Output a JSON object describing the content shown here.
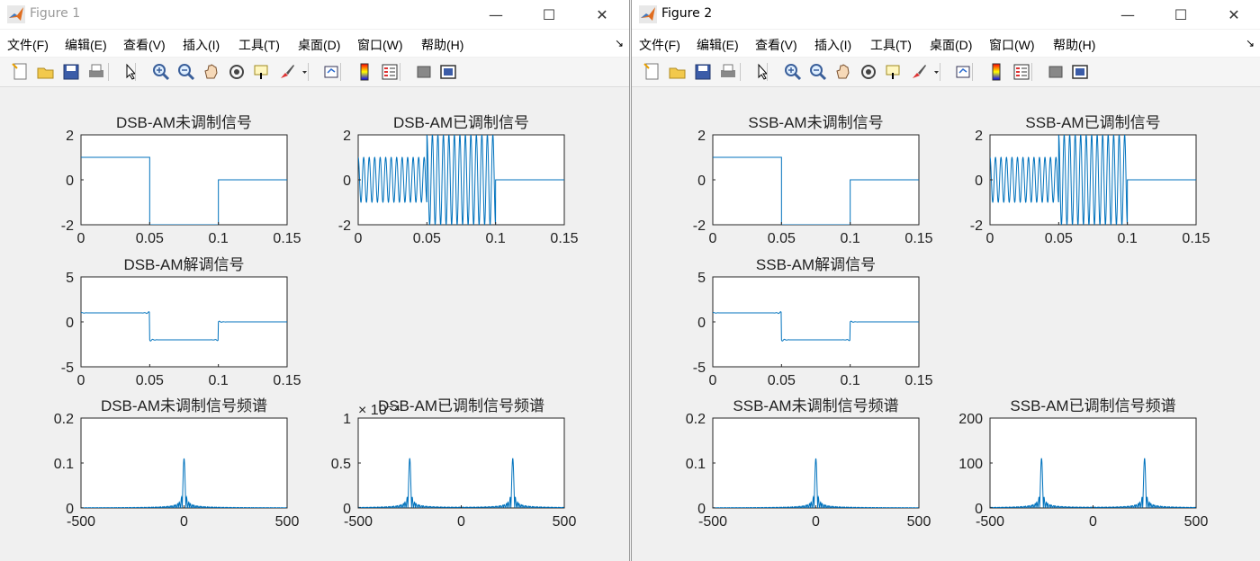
{
  "colors": {
    "line": "#0072bd",
    "axes_bg": "#ffffff",
    "figure_bg": "#f0f0f0"
  },
  "menu": [
    "文件(F)",
    "编辑(E)",
    "查看(V)",
    "插入(I)",
    "工具(T)",
    "桌面(D)",
    "窗口(W)",
    "帮助(H)"
  ],
  "window_controls": {
    "minimize": "—",
    "maximize": "☐",
    "close": "✕"
  },
  "toolbar_icons": [
    "new-figure-icon",
    "open-file-icon",
    "save-icon",
    "print-icon",
    "edit-plot-icon",
    "zoom-in-icon",
    "zoom-out-icon",
    "pan-icon",
    "rotate-3d-icon",
    "data-cursor-icon",
    "brush-icon",
    "brush-dropdown-icon",
    "link-plot-icon",
    "colorbar-icon",
    "legend-icon",
    "hide-plot-tools-icon",
    "show-plot-tools-icon"
  ],
  "figures": [
    {
      "title": "Figure 1",
      "chart_data": [
        {
          "type": "line",
          "title": "DSB-AM未调制信号",
          "xlim": [
            0,
            0.15
          ],
          "ylim": [
            -2,
            2
          ],
          "xticks": [
            "0",
            "0.05",
            "0.1",
            "0.15"
          ],
          "yticks": [
            "2",
            "0",
            "-2"
          ],
          "signal": "message",
          "x": [
            0,
            0.05,
            0.05,
            0.1,
            0.1,
            0.15
          ],
          "y": [
            1,
            1,
            -2,
            -2,
            0,
            0
          ]
        },
        {
          "type": "line",
          "title": "DSB-AM已调制信号",
          "xlim": [
            0,
            0.15
          ],
          "ylim": [
            -2,
            2
          ],
          "xticks": [
            "0",
            "0.05",
            "0.1",
            "0.15"
          ],
          "yticks": [
            "2",
            "0",
            "-2"
          ],
          "signal": "modulated",
          "carrier_hz": 250,
          "envelope": {
            "x": [
              0,
              0.05,
              0.1,
              0.15
            ],
            "y": [
              1,
              -2,
              0,
              0
            ]
          }
        },
        {
          "type": "line",
          "title": "DSB-AM解调信号",
          "xlim": [
            0,
            0.15
          ],
          "ylim": [
            -5,
            5
          ],
          "xticks": [
            "0",
            "0.05",
            "0.1",
            "0.15"
          ],
          "yticks": [
            "5",
            "0",
            "-5"
          ],
          "signal": "demodulated",
          "x": [
            0,
            0.05,
            0.05,
            0.1,
            0.1,
            0.15
          ],
          "y": [
            1,
            1,
            -2,
            -2,
            0,
            0
          ]
        },
        {
          "type": "line",
          "title": "DSB-AM未调制信号频谱",
          "xlim": [
            -500,
            500
          ],
          "ylim": [
            0,
            0.2
          ],
          "xticks": [
            "-500",
            "0",
            "500"
          ],
          "yticks": [
            "0.2",
            "0.1",
            "0"
          ],
          "signal": "spectrum",
          "peaks": [
            {
              "f": 0,
              "amp": 0.11
            }
          ]
        },
        {
          "type": "line",
          "title": "DSB-AM已调制信号频谱",
          "xlim": [
            -500,
            500
          ],
          "ylim": [
            0,
            1
          ],
          "xticks": [
            "-500",
            "0",
            "500"
          ],
          "yticks": [
            "1",
            "0.5",
            "0"
          ],
          "exponent_label": "× 10⁻⁴",
          "signal": "spectrum",
          "peaks": [
            {
              "f": -250,
              "amp": 0.55
            },
            {
              "f": 250,
              "amp": 0.55
            }
          ]
        }
      ]
    },
    {
      "title": "Figure 2",
      "chart_data": [
        {
          "type": "line",
          "title": "SSB-AM未调制信号",
          "xlim": [
            0,
            0.15
          ],
          "ylim": [
            -2,
            2
          ],
          "xticks": [
            "0",
            "0.05",
            "0.1",
            "0.15"
          ],
          "yticks": [
            "2",
            "0",
            "-2"
          ],
          "signal": "message",
          "x": [
            0,
            0.05,
            0.05,
            0.1,
            0.1,
            0.15
          ],
          "y": [
            1,
            1,
            -2,
            -2,
            0,
            0
          ]
        },
        {
          "type": "line",
          "title": "SSB-AM已调制信号",
          "xlim": [
            0,
            0.15
          ],
          "ylim": [
            -2,
            2
          ],
          "xticks": [
            "0",
            "0.05",
            "0.1",
            "0.15"
          ],
          "yticks": [
            "2",
            "0",
            "-2"
          ],
          "signal": "modulated",
          "carrier_hz": 250,
          "envelope": {
            "x": [
              0,
              0.05,
              0.1,
              0.15
            ],
            "y": [
              1,
              -2,
              0,
              0
            ]
          }
        },
        {
          "type": "line",
          "title": "SSB-AM解调信号",
          "xlim": [
            0,
            0.15
          ],
          "ylim": [
            -5,
            5
          ],
          "xticks": [
            "0",
            "0.05",
            "0.1",
            "0.15"
          ],
          "yticks": [
            "5",
            "0",
            "-5"
          ],
          "signal": "demodulated",
          "x": [
            0,
            0.05,
            0.05,
            0.1,
            0.1,
            0.15
          ],
          "y": [
            1,
            1,
            -2,
            -2,
            0,
            0
          ]
        },
        {
          "type": "line",
          "title": "SSB-AM未调制信号频谱",
          "xlim": [
            -500,
            500
          ],
          "ylim": [
            0,
            0.2
          ],
          "xticks": [
            "-500",
            "0",
            "500"
          ],
          "yticks": [
            "0.2",
            "0.1",
            "0"
          ],
          "signal": "spectrum",
          "peaks": [
            {
              "f": 0,
              "amp": 0.11
            }
          ]
        },
        {
          "type": "line",
          "title": "SSB-AM已调制信号频谱",
          "xlim": [
            -500,
            500
          ],
          "ylim": [
            0,
            200
          ],
          "xticks": [
            "-500",
            "0",
            "500"
          ],
          "yticks": [
            "200",
            "100",
            "0"
          ],
          "signal": "spectrum",
          "peaks": [
            {
              "f": -250,
              "amp": 110
            },
            {
              "f": 250,
              "amp": 110
            }
          ]
        }
      ]
    }
  ]
}
